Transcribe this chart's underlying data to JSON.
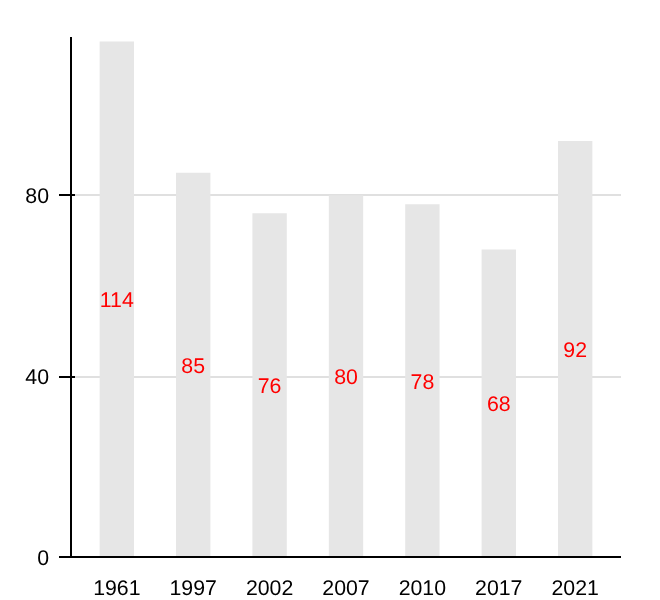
{
  "chart_data": {
    "type": "bar",
    "categories": [
      "1961",
      "1997",
      "2002",
      "2007",
      "2010",
      "2017",
      "2021"
    ],
    "values": [
      114,
      85,
      76,
      80,
      78,
      68,
      92
    ],
    "color": "#e6e6e6",
    "ylim": [
      0,
      115
    ],
    "yticks": [
      0,
      40,
      80
    ],
    "grid": "y",
    "data_labels": true
  }
}
